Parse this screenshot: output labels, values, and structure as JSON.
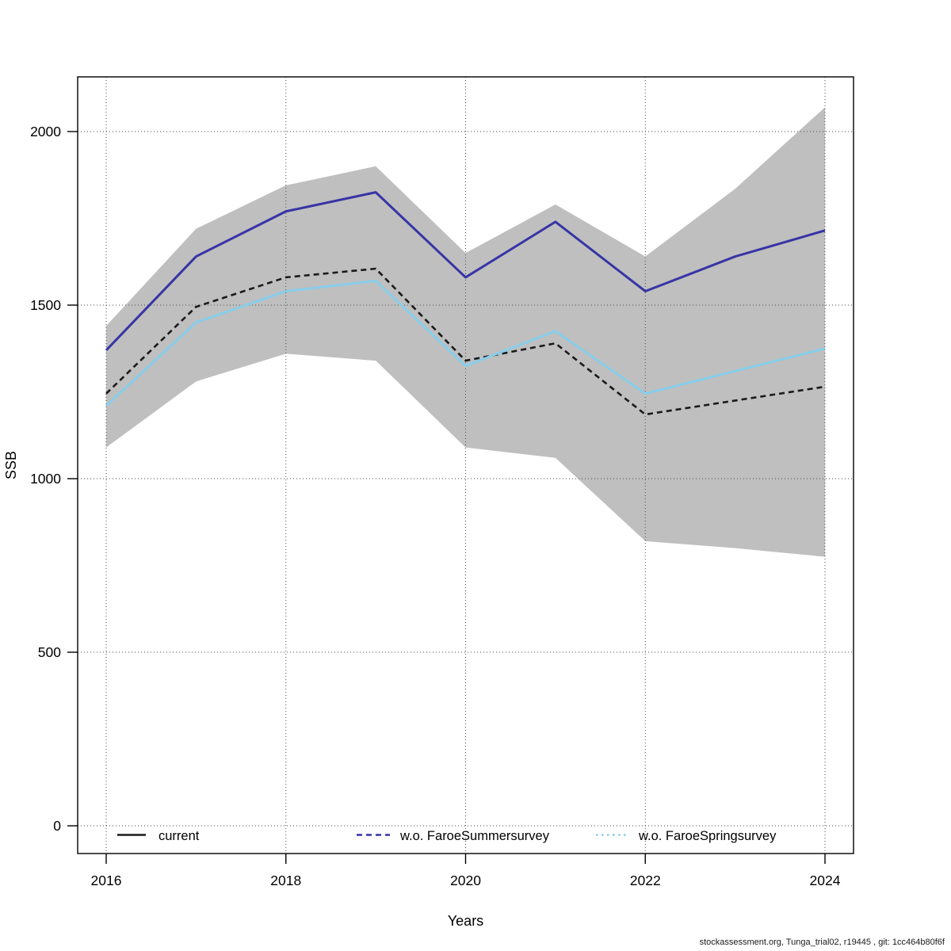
{
  "footer": {
    "text": "stockassessment.org, Tunga_trial02, r19445 , git: 1cc464b80f6f"
  },
  "chart_data": {
    "type": "line",
    "title": "",
    "xlabel": "Years",
    "ylabel": "SSB",
    "grid": "dotted",
    "legend_position": "bottom-inside",
    "xlim": [
      2015.68,
      2024.32
    ],
    "ylim": [
      -80,
      2160
    ],
    "xticks": [
      2016,
      2018,
      2020,
      2022,
      2024
    ],
    "yticks": [
      0,
      500,
      1000,
      1500,
      2000
    ],
    "x": [
      2016,
      2017,
      2018,
      2019,
      2020,
      2021,
      2022,
      2023,
      2024
    ],
    "series": [
      {
        "name": "current",
        "color": "#1a1a1a",
        "line_style": "dashed",
        "values": [
          1245,
          1495,
          1580,
          1605,
          1340,
          1390,
          1185,
          1225,
          1265
        ]
      },
      {
        "name": "w.o. FaroeSummersurvey",
        "color": "#3734A6",
        "line_style": "solid",
        "values": [
          1370,
          1640,
          1770,
          1825,
          1580,
          1740,
          1540,
          1640,
          1715
        ]
      },
      {
        "name": "w.o. FaroeSpringsurvey",
        "color": "#87CEEB",
        "line_style": "solid",
        "values": [
          1210,
          1450,
          1540,
          1570,
          1325,
          1425,
          1245,
          1310,
          1375
        ]
      }
    ],
    "band": {
      "for_series": "current",
      "color": "#BFBFBF",
      "upper": [
        1440,
        1720,
        1845,
        1900,
        1650,
        1790,
        1640,
        1835,
        2070
      ],
      "lower": [
        1090,
        1280,
        1360,
        1340,
        1090,
        1060,
        820,
        800,
        775
      ]
    },
    "legend": [
      {
        "label": "current",
        "color": "#1a1a1a",
        "sample_style": "solid"
      },
      {
        "label": "w.o. FaroeSummersurvey",
        "color": "#3734A6",
        "sample_style": "dashed"
      },
      {
        "label": "w.o. FaroeSpringsurvey",
        "color": "#87CEEB",
        "sample_style": "dotted"
      }
    ]
  }
}
